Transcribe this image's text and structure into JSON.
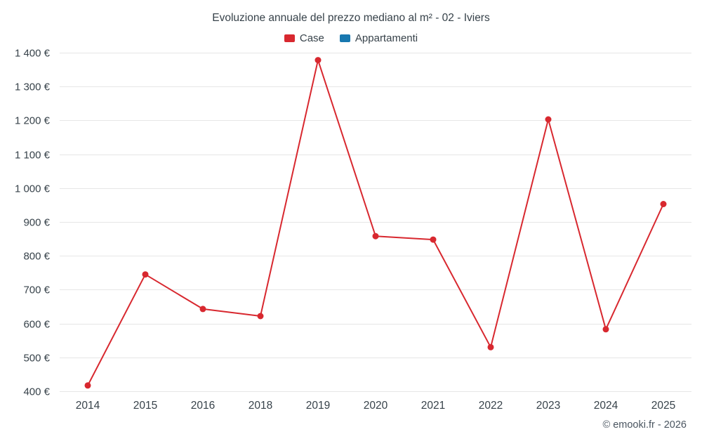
{
  "title": "Evoluzione annuale del prezzo mediano al m² - 02 - Iviers",
  "footer": "© emooki.fr - 2026",
  "colors": {
    "case_red": "#d8282f",
    "appartamenti_blue": "#1878b0",
    "grid": "#e6e6e6",
    "text": "#37424a"
  },
  "chart_data": {
    "type": "line",
    "title": "Evoluzione annuale del prezzo mediano al m² - 02 - Iviers",
    "categories": [
      "2014",
      "2015",
      "2016",
      "2018",
      "2019",
      "2020",
      "2021",
      "2022",
      "2023",
      "2024",
      "2025"
    ],
    "series": [
      {
        "name": "Case",
        "color": "#d8282f",
        "values": [
          417,
          745,
          643,
          622,
          1378,
          858,
          848,
          530,
          1203,
          583,
          953
        ]
      },
      {
        "name": "Appartamenti",
        "color": "#1878b0",
        "values": []
      }
    ],
    "ylim": [
      400,
      1400
    ],
    "ytick_step": 100,
    "ytick_suffix": " €",
    "grid": true,
    "legend_position": "top",
    "xlabel": "",
    "ylabel": ""
  }
}
